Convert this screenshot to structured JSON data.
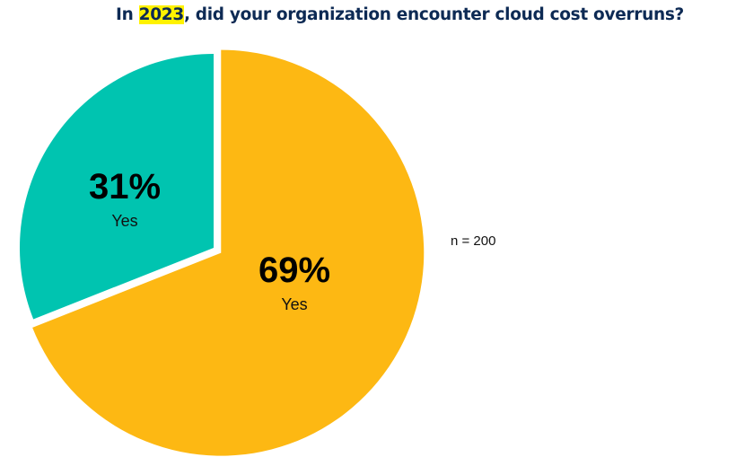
{
  "chart_data": {
    "type": "pie",
    "title_prefix": "In ",
    "title_highlight": "2023",
    "title_suffix": ", did your organization encounter cloud cost overruns?",
    "slices": [
      {
        "label": "Yes",
        "value": 31,
        "display": "31%",
        "color": "#00c4b0"
      },
      {
        "label": "Yes",
        "value": 69,
        "display": "69%",
        "color": "#fdb813"
      }
    ],
    "annotation": "n = 200",
    "legend": "none"
  }
}
